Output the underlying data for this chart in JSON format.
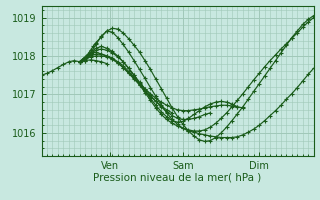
{
  "xlabel": "Pression niveau de la mer( hPa )",
  "bg_color": "#c8e8e0",
  "grid_color": "#a0c8b8",
  "line_color": "#1a5c1a",
  "ylim": [
    1015.4,
    1019.3
  ],
  "xlim": [
    0,
    100
  ],
  "xticks": [
    25,
    52,
    80
  ],
  "xticklabels": [
    "Ven",
    "Sam",
    "Dim"
  ],
  "yticks": [
    1016,
    1017,
    1018,
    1019
  ],
  "lines": [
    {
      "x": [
        14,
        15,
        16,
        17,
        18,
        19,
        20,
        22,
        24,
        26,
        28,
        30,
        32,
        34,
        36,
        38,
        40,
        42,
        44,
        46,
        48,
        50,
        52,
        54,
        56,
        58,
        60,
        62,
        64,
        66,
        68,
        70,
        72,
        74,
        76,
        78,
        80,
        82,
        84,
        86,
        88,
        90,
        92,
        94,
        96,
        98,
        100
      ],
      "y": [
        1017.85,
        1017.9,
        1017.95,
        1018.0,
        1018.05,
        1018.1,
        1018.1,
        1018.05,
        1018.0,
        1017.95,
        1017.85,
        1017.75,
        1017.6,
        1017.45,
        1017.25,
        1017.05,
        1016.85,
        1016.65,
        1016.48,
        1016.35,
        1016.25,
        1016.18,
        1016.12,
        1016.08,
        1016.05,
        1016.05,
        1016.08,
        1016.15,
        1016.25,
        1016.38,
        1016.52,
        1016.68,
        1016.85,
        1017.02,
        1017.2,
        1017.38,
        1017.55,
        1017.72,
        1017.88,
        1018.03,
        1018.18,
        1018.32,
        1018.46,
        1018.6,
        1018.75,
        1018.88,
        1019.0
      ]
    },
    {
      "x": [
        14,
        15,
        16,
        17,
        18,
        19,
        20,
        22,
        24,
        26,
        28,
        30,
        32,
        34,
        36,
        38,
        40,
        42,
        44,
        46,
        48,
        50,
        52,
        54,
        56,
        58,
        60,
        62,
        64,
        66,
        68,
        70,
        72,
        74,
        76,
        78,
        80,
        82,
        84,
        86,
        88,
        90,
        92,
        94,
        96,
        98,
        100
      ],
      "y": [
        1017.85,
        1017.9,
        1017.95,
        1018.05,
        1018.15,
        1018.25,
        1018.35,
        1018.5,
        1018.65,
        1018.72,
        1018.7,
        1018.6,
        1018.45,
        1018.28,
        1018.1,
        1017.88,
        1017.65,
        1017.4,
        1017.15,
        1016.9,
        1016.65,
        1016.42,
        1016.22,
        1016.05,
        1015.92,
        1015.82,
        1015.78,
        1015.8,
        1015.88,
        1016.0,
        1016.15,
        1016.32,
        1016.5,
        1016.68,
        1016.88,
        1017.08,
        1017.28,
        1017.48,
        1017.68,
        1017.88,
        1018.08,
        1018.28,
        1018.48,
        1018.65,
        1018.82,
        1018.95,
        1019.05
      ]
    },
    {
      "x": [
        14,
        16,
        18,
        20,
        22,
        24,
        26,
        28,
        30,
        32,
        34,
        36,
        38,
        40,
        42,
        44,
        46,
        48,
        50,
        52,
        54,
        56,
        58,
        60,
        62,
        64,
        66,
        68,
        70,
        72
      ],
      "y": [
        1017.85,
        1017.95,
        1018.1,
        1018.2,
        1018.25,
        1018.2,
        1018.12,
        1018.0,
        1017.85,
        1017.68,
        1017.5,
        1017.3,
        1017.1,
        1016.9,
        1016.72,
        1016.55,
        1016.42,
        1016.32,
        1016.28,
        1016.3,
        1016.38,
        1016.48,
        1016.58,
        1016.68,
        1016.75,
        1016.8,
        1016.82,
        1016.8,
        1016.75,
        1016.68
      ]
    },
    {
      "x": [
        14,
        16,
        18,
        20,
        22,
        24,
        26,
        28,
        30,
        32,
        34,
        36,
        38,
        40,
        42,
        44,
        46,
        48,
        50,
        52,
        54,
        56,
        58,
        60,
        62
      ],
      "y": [
        1017.85,
        1017.98,
        1018.08,
        1018.15,
        1018.18,
        1018.15,
        1018.08,
        1017.98,
        1017.85,
        1017.68,
        1017.5,
        1017.32,
        1017.15,
        1016.98,
        1016.82,
        1016.68,
        1016.55,
        1016.45,
        1016.38,
        1016.35,
        1016.35,
        1016.38,
        1016.42,
        1016.48,
        1016.52
      ]
    },
    {
      "x": [
        14,
        16,
        18,
        20,
        22,
        24,
        26,
        28,
        30,
        32,
        34,
        36,
        38,
        40,
        42,
        44,
        46,
        48
      ],
      "y": [
        1017.85,
        1017.95,
        1018.02,
        1018.05,
        1018.05,
        1018.0,
        1017.92,
        1017.82,
        1017.7,
        1017.55,
        1017.4,
        1017.25,
        1017.1,
        1016.95,
        1016.82,
        1016.7,
        1016.6,
        1016.52
      ]
    },
    {
      "x": [
        14,
        16,
        18,
        20,
        22,
        24,
        26,
        28,
        30,
        32,
        34,
        36,
        38,
        40,
        42,
        44,
        46,
        48,
        50,
        52,
        54,
        56,
        58,
        60,
        62,
        64,
        66,
        68,
        70,
        72,
        74
      ],
      "y": [
        1017.85,
        1017.92,
        1017.98,
        1018.0,
        1018.0,
        1017.98,
        1017.92,
        1017.82,
        1017.7,
        1017.56,
        1017.42,
        1017.28,
        1017.15,
        1017.02,
        1016.9,
        1016.8,
        1016.72,
        1016.65,
        1016.6,
        1016.58,
        1016.58,
        1016.6,
        1016.62,
        1016.65,
        1016.68,
        1016.7,
        1016.72,
        1016.72,
        1016.7,
        1016.68,
        1016.65
      ]
    },
    {
      "x": [
        14,
        16,
        18,
        20,
        22,
        24
      ],
      "y": [
        1017.85,
        1017.88,
        1017.9,
        1017.88,
        1017.85,
        1017.8
      ]
    },
    {
      "x": [
        0,
        2,
        4,
        6,
        8,
        10,
        12,
        14,
        16,
        18,
        20,
        22,
        24,
        26,
        28,
        30,
        32,
        34,
        36,
        38,
        40,
        42,
        44,
        46,
        48,
        50,
        52,
        54,
        56,
        58,
        60,
        62,
        64,
        66,
        68,
        70,
        72,
        74,
        76,
        78,
        80,
        82,
        84,
        86,
        88,
        90,
        92,
        94,
        96,
        98,
        100
      ],
      "y": [
        1017.5,
        1017.55,
        1017.62,
        1017.7,
        1017.78,
        1017.85,
        1017.88,
        1017.85,
        1017.88,
        1018.08,
        1018.3,
        1018.52,
        1018.65,
        1018.62,
        1018.48,
        1018.3,
        1018.1,
        1017.88,
        1017.65,
        1017.42,
        1017.18,
        1016.95,
        1016.72,
        1016.52,
        1016.35,
        1016.22,
        1016.12,
        1016.05,
        1016.02,
        1015.98,
        1015.95,
        1015.92,
        1015.9,
        1015.88,
        1015.88,
        1015.88,
        1015.9,
        1015.95,
        1016.02,
        1016.1,
        1016.2,
        1016.32,
        1016.45,
        1016.58,
        1016.72,
        1016.88,
        1017.02,
        1017.18,
        1017.35,
        1017.52,
        1017.68
      ]
    }
  ]
}
